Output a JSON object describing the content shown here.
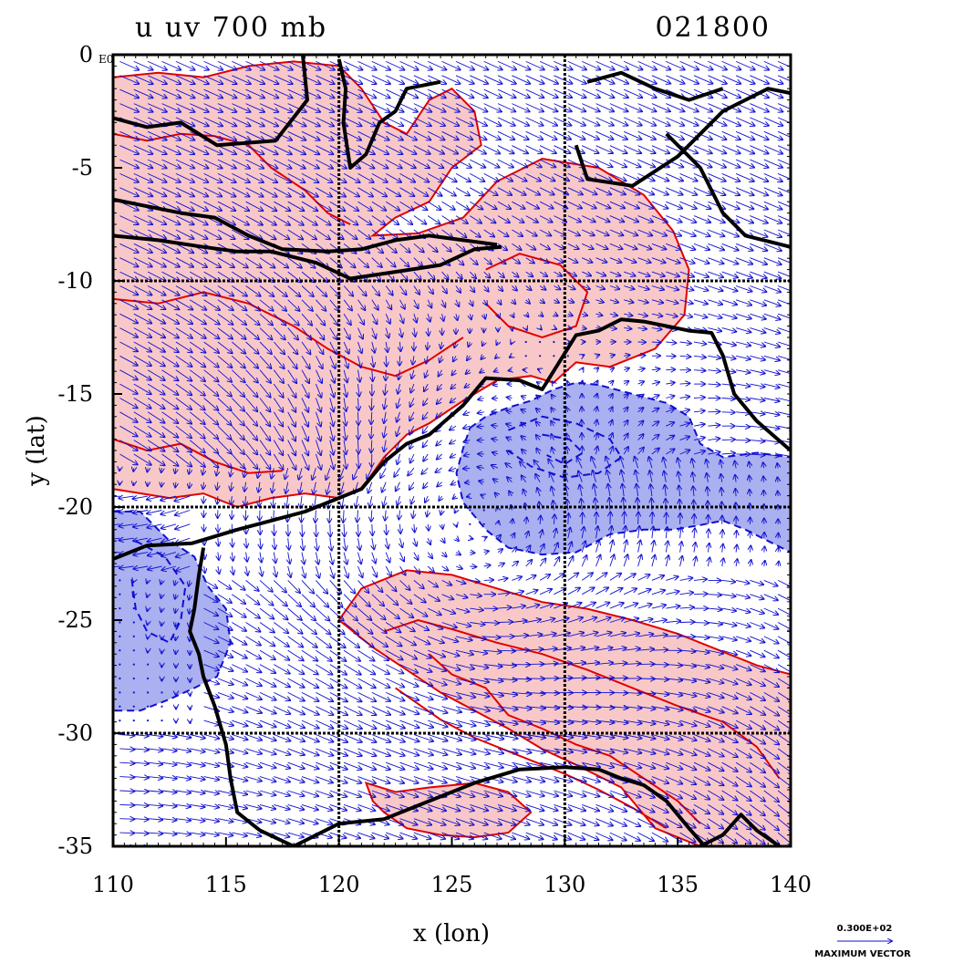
{
  "title": {
    "left": "u  uv 700  mb",
    "right": "021800"
  },
  "axes": {
    "xlabel": "x (lon)",
    "ylabel": "y (lat)",
    "xlim": [
      110,
      140
    ],
    "ylim": [
      -35,
      0
    ],
    "xticks": [
      "110",
      "115",
      "120",
      "125",
      "130",
      "135",
      "140"
    ],
    "yticks": [
      "0",
      "-5",
      "-10",
      "-15",
      "-20",
      "-25",
      "-30",
      "-35"
    ],
    "y_exponent": "E0",
    "gridlines_lon": [
      120,
      130
    ],
    "gridlines_lat": [
      -10,
      -20,
      -30
    ]
  },
  "reference_vector": {
    "value": "0.300E+02",
    "label": "MAXIMUM VECTOR"
  },
  "colors": {
    "positive_fill": "#f8c8c8",
    "positive_line": "#e00000",
    "negative_fill": "#aab0f0",
    "negative_line": "#1010d0",
    "vector": "#1010d0",
    "coast": "#000000"
  },
  "map_data": {
    "type": "contour_with_vectors",
    "coastlines": [
      [
        [
          118.4,
          0
        ],
        [
          118.6,
          -2
        ],
        [
          117.2,
          -3.8
        ],
        [
          114.6,
          -4
        ],
        [
          113,
          -3
        ],
        [
          111.5,
          -3.2
        ],
        [
          110,
          -2.8
        ]
      ],
      [
        [
          110,
          -6.4
        ],
        [
          111.5,
          -6.7
        ],
        [
          113,
          -7
        ],
        [
          114.5,
          -7.2
        ],
        [
          116,
          -8
        ],
        [
          117.5,
          -8.6
        ],
        [
          119.5,
          -8.7
        ],
        [
          121,
          -8.6
        ],
        [
          122.5,
          -8.2
        ],
        [
          124,
          -8
        ],
        [
          125.5,
          -8.2
        ],
        [
          127,
          -8.4
        ]
      ],
      [
        [
          110,
          -8
        ],
        [
          112,
          -8.2
        ],
        [
          114,
          -8.5
        ],
        [
          115.5,
          -8.7
        ],
        [
          117,
          -8.7
        ],
        [
          119,
          -9.2
        ],
        [
          120.5,
          -9.9
        ],
        [
          122.5,
          -9.6
        ],
        [
          124.5,
          -9.3
        ],
        [
          126,
          -8.6
        ],
        [
          127.2,
          -8.5
        ]
      ],
      [
        [
          120,
          -0.2
        ],
        [
          120.3,
          -1.5
        ],
        [
          120.2,
          -3
        ],
        [
          120.5,
          -5
        ],
        [
          121.2,
          -4.4
        ],
        [
          121.8,
          -3
        ],
        [
          122.5,
          -2.5
        ],
        [
          123,
          -1.5
        ],
        [
          124.5,
          -1.2
        ]
      ],
      [
        [
          130.5,
          -4
        ],
        [
          131,
          -5.5
        ],
        [
          133,
          -5.8
        ],
        [
          135,
          -4.5
        ],
        [
          137,
          -2.5
        ],
        [
          139,
          -1.5
        ],
        [
          140,
          -1.7
        ]
      ],
      [
        [
          131,
          -1.2
        ],
        [
          132.5,
          -0.8
        ],
        [
          134,
          -1.5
        ],
        [
          135.5,
          -2
        ],
        [
          137,
          -1.5
        ]
      ],
      [
        [
          140,
          -8.5
        ],
        [
          138,
          -8
        ],
        [
          137,
          -7
        ],
        [
          136,
          -5
        ],
        [
          134.5,
          -3.5
        ]
      ],
      [
        [
          110,
          -22.3
        ],
        [
          111.5,
          -21.7
        ],
        [
          113.5,
          -21.6
        ],
        [
          115.5,
          -21
        ],
        [
          117,
          -20.6
        ],
        [
          118.5,
          -20.2
        ],
        [
          120,
          -19.6
        ],
        [
          121,
          -19.2
        ],
        [
          122,
          -18
        ],
        [
          123,
          -17.2
        ],
        [
          124,
          -16.8
        ],
        [
          125.5,
          -15.5
        ],
        [
          126.5,
          -14.3
        ],
        [
          128,
          -14.4
        ],
        [
          129,
          -14.8
        ],
        [
          130,
          -13.2
        ],
        [
          130.5,
          -12.4
        ],
        [
          131.5,
          -12.2
        ],
        [
          132.5,
          -11.7
        ],
        [
          133.5,
          -11.8
        ],
        [
          134.5,
          -12
        ],
        [
          135.5,
          -12.2
        ],
        [
          136.5,
          -12.3
        ],
        [
          137,
          -13.3
        ],
        [
          137.5,
          -15
        ],
        [
          138.5,
          -16.2
        ],
        [
          140,
          -17.5
        ]
      ],
      [
        [
          114,
          -21.8
        ],
        [
          113.8,
          -23
        ],
        [
          113.6,
          -24.5
        ],
        [
          113.4,
          -25.5
        ],
        [
          113.8,
          -26.5
        ],
        [
          114,
          -27.5
        ],
        [
          114.5,
          -28.8
        ],
        [
          115,
          -30.5
        ],
        [
          115.2,
          -32
        ],
        [
          115.5,
          -33.5
        ],
        [
          116.5,
          -34.3
        ],
        [
          118,
          -35
        ],
        [
          120,
          -34
        ],
        [
          122,
          -33.8
        ],
        [
          124,
          -33
        ],
        [
          126,
          -32.2
        ],
        [
          128,
          -31.6
        ],
        [
          130,
          -31.5
        ],
        [
          131.5,
          -31.6
        ],
        [
          132.5,
          -32
        ],
        [
          133.5,
          -32.3
        ],
        [
          134.5,
          -33
        ],
        [
          135.5,
          -34.2
        ],
        [
          136.2,
          -35
        ]
      ],
      [
        [
          136,
          -35
        ],
        [
          137,
          -34.5
        ],
        [
          137.8,
          -33.6
        ],
        [
          138.5,
          -34.3
        ],
        [
          139.5,
          -35
        ]
      ]
    ],
    "positive_regions": [
      [
        [
          110,
          -1
        ],
        [
          112,
          -0.8
        ],
        [
          114,
          -1
        ],
        [
          116,
          -0.5
        ],
        [
          118,
          -0.3
        ],
        [
          120,
          -0.5
        ],
        [
          121,
          -1.5
        ],
        [
          122,
          -3
        ],
        [
          123,
          -3.5
        ],
        [
          124,
          -2
        ],
        [
          125,
          -1.5
        ],
        [
          126,
          -2.5
        ],
        [
          126.3,
          -4
        ],
        [
          125,
          -5
        ],
        [
          124,
          -6.5
        ],
        [
          122.5,
          -7.2
        ],
        [
          121.5,
          -8
        ],
        [
          123.5,
          -7.9
        ],
        [
          125.5,
          -7.2
        ],
        [
          127,
          -5.6
        ],
        [
          129,
          -4.6
        ],
        [
          131.5,
          -5
        ],
        [
          133.5,
          -6.2
        ],
        [
          134.8,
          -7.8
        ],
        [
          135.5,
          -9.5
        ],
        [
          135.3,
          -11.5
        ],
        [
          134,
          -13
        ],
        [
          132,
          -13.8
        ],
        [
          130.5,
          -13.6
        ],
        [
          129.5,
          -14.5
        ],
        [
          128.5,
          -14.2
        ],
        [
          127,
          -14.4
        ],
        [
          125.5,
          -15.3
        ],
        [
          124,
          -16.3
        ],
        [
          123,
          -16.8
        ],
        [
          122,
          -17.8
        ],
        [
          121,
          -19.2
        ],
        [
          120,
          -19.6
        ],
        [
          118.5,
          -19.4
        ],
        [
          117,
          -19.6
        ],
        [
          115.5,
          -20
        ],
        [
          114,
          -19.4
        ],
        [
          112.5,
          -19.6
        ],
        [
          110,
          -19.2
        ]
      ],
      [
        [
          120,
          -25
        ],
        [
          121,
          -23.6
        ],
        [
          123,
          -22.8
        ],
        [
          125,
          -23
        ],
        [
          127,
          -23.6
        ],
        [
          129,
          -24.2
        ],
        [
          131,
          -24.5
        ],
        [
          133,
          -25
        ],
        [
          135,
          -25.6
        ],
        [
          137,
          -26.4
        ],
        [
          138.5,
          -27
        ],
        [
          140,
          -27.4
        ],
        [
          140,
          -35
        ],
        [
          138,
          -35
        ],
        [
          136,
          -35
        ],
        [
          134,
          -34.2
        ],
        [
          132.5,
          -32.4
        ],
        [
          130.5,
          -31.4
        ],
        [
          129,
          -30.7
        ],
        [
          127.5,
          -29.8
        ],
        [
          126,
          -29
        ],
        [
          124.5,
          -28.2
        ],
        [
          123,
          -27.2
        ],
        [
          121.5,
          -26.2
        ]
      ],
      [
        [
          121.2,
          -32.2
        ],
        [
          122.5,
          -32.6
        ],
        [
          124,
          -32.4
        ],
        [
          126,
          -32.2
        ],
        [
          127.5,
          -32.6
        ],
        [
          128.5,
          -33.5
        ],
        [
          127.5,
          -34.4
        ],
        [
          126,
          -34.6
        ],
        [
          124.5,
          -34.5
        ],
        [
          123,
          -34.2
        ],
        [
          122,
          -33.5
        ],
        [
          121.5,
          -33
        ]
      ]
    ],
    "negative_regions": [
      [
        [
          125.8,
          -16.5
        ],
        [
          126.5,
          -16
        ],
        [
          127.5,
          -15.6
        ],
        [
          128.5,
          -15.3
        ],
        [
          129.5,
          -14.8
        ],
        [
          130.5,
          -14.5
        ],
        [
          131.5,
          -14.6
        ],
        [
          133,
          -15
        ],
        [
          134.5,
          -15.4
        ],
        [
          135.5,
          -16
        ],
        [
          136,
          -17.2
        ],
        [
          137,
          -17.8
        ],
        [
          138.5,
          -17.6
        ],
        [
          140,
          -17.8
        ],
        [
          140,
          -22
        ],
        [
          139,
          -21.5
        ],
        [
          138,
          -21
        ],
        [
          137,
          -20.6
        ],
        [
          136,
          -20.8
        ],
        [
          134.8,
          -21
        ],
        [
          133.5,
          -21
        ],
        [
          132,
          -21.2
        ],
        [
          130.5,
          -22
        ],
        [
          129,
          -22.1
        ],
        [
          127.5,
          -21.8
        ],
        [
          126.5,
          -21
        ],
        [
          125.5,
          -19.8
        ],
        [
          125.2,
          -18.5
        ],
        [
          125.5,
          -17.4
        ]
      ],
      [
        [
          110,
          -20.2
        ],
        [
          111.2,
          -20.2
        ],
        [
          112.4,
          -21.4
        ],
        [
          113.6,
          -22.2
        ],
        [
          114.2,
          -23.5
        ],
        [
          115,
          -24.5
        ],
        [
          115.2,
          -26
        ],
        [
          114.6,
          -27.5
        ],
        [
          113.6,
          -28
        ],
        [
          112.5,
          -28.5
        ],
        [
          111.2,
          -29
        ],
        [
          110,
          -29
        ]
      ]
    ],
    "contour_lines_pos": [
      [
        [
          110,
          -3.5
        ],
        [
          111.5,
          -3.8
        ],
        [
          113,
          -3.5
        ],
        [
          114.5,
          -3.6
        ],
        [
          116,
          -4
        ],
        [
          117,
          -5
        ],
        [
          118.5,
          -6
        ],
        [
          119.5,
          -7
        ],
        [
          120.5,
          -7.5
        ]
      ],
      [
        [
          110,
          -10.8
        ],
        [
          112,
          -11
        ],
        [
          114,
          -10.5
        ],
        [
          116,
          -11
        ],
        [
          118,
          -12
        ],
        [
          119.5,
          -13
        ],
        [
          121,
          -13.8
        ],
        [
          122.5,
          -14.2
        ],
        [
          124,
          -13.5
        ],
        [
          125.5,
          -12.5
        ]
      ],
      [
        [
          126.5,
          -9.5
        ],
        [
          128,
          -8.8
        ],
        [
          129.8,
          -9.3
        ],
        [
          131,
          -10.5
        ],
        [
          130.5,
          -12
        ],
        [
          129,
          -12.5
        ],
        [
          127.5,
          -12
        ],
        [
          126.5,
          -11
        ]
      ],
      [
        [
          110,
          -17
        ],
        [
          111.5,
          -17.5
        ],
        [
          113,
          -17.2
        ],
        [
          114.5,
          -18
        ],
        [
          116,
          -18.5
        ],
        [
          117.5,
          -18.4
        ]
      ],
      [
        [
          122,
          -25.5
        ],
        [
          123.5,
          -25
        ],
        [
          125,
          -25.4
        ],
        [
          127,
          -26
        ],
        [
          129,
          -26.5
        ],
        [
          131,
          -27.2
        ],
        [
          133,
          -28
        ],
        [
          135,
          -28.8
        ],
        [
          137,
          -29.5
        ],
        [
          138.5,
          -30.6
        ],
        [
          139.5,
          -32
        ]
      ],
      [
        [
          122.5,
          -28
        ],
        [
          124.5,
          -29.4
        ],
        [
          126,
          -30.2
        ],
        [
          128,
          -31
        ],
        [
          130,
          -31.8
        ],
        [
          131.5,
          -32.5
        ],
        [
          133,
          -33.3
        ],
        [
          134.5,
          -34.2
        ]
      ],
      [
        [
          124,
          -26.5
        ],
        [
          125,
          -27.4
        ],
        [
          126.5,
          -28
        ],
        [
          127.5,
          -29.2
        ],
        [
          129,
          -29.8
        ],
        [
          130.5,
          -30.5
        ],
        [
          132,
          -31
        ],
        [
          133.5,
          -32
        ],
        [
          135,
          -33
        ],
        [
          136,
          -34
        ]
      ]
    ],
    "contour_lines_neg": [
      [
        [
          127.5,
          -16.6
        ],
        [
          129,
          -16
        ],
        [
          130.5,
          -16.3
        ],
        [
          132,
          -17
        ],
        [
          132.5,
          -17.8
        ],
        [
          131.5,
          -18.5
        ],
        [
          130,
          -18.7
        ],
        [
          128.5,
          -18.2
        ],
        [
          127.5,
          -17.5
        ]
      ],
      [
        [
          111,
          -21.5
        ],
        [
          112.3,
          -22.2
        ],
        [
          113.2,
          -23.5
        ],
        [
          113,
          -25
        ],
        [
          112.5,
          -26
        ],
        [
          111.5,
          -25.5
        ],
        [
          111,
          -24.5
        ],
        [
          110.8,
          -23
        ]
      ],
      [
        [
          129,
          -16.8
        ],
        [
          130.2,
          -17
        ],
        [
          130.8,
          -17.6
        ],
        [
          130,
          -18.1
        ],
        [
          129.2,
          -17.7
        ]
      ]
    ],
    "vector_field": "wind vectors at 700 mb: westerlies/northwesterlies north of 20S and south of 22S, anticyclonic flow near 20S"
  }
}
